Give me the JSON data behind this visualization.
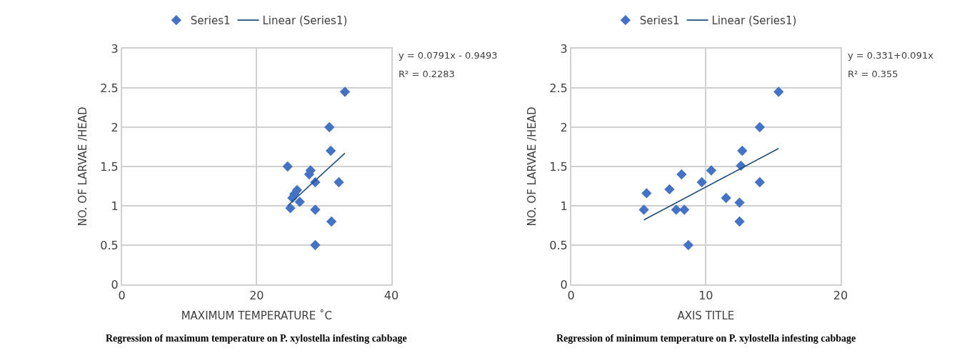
{
  "chart_data": [
    {
      "type": "scatter",
      "xlabel": "MAXIMUM TEMPERATURE ˚C",
      "ylabel": "NO. OF LARVAE /HEAD",
      "xlim": [
        0,
        40
      ],
      "xticks": [
        0,
        20,
        40
      ],
      "ylim": [
        0,
        3
      ],
      "yticks": [
        0,
        0.5,
        1,
        1.5,
        2,
        2.5,
        3
      ],
      "grid": true,
      "legend": "top",
      "series": [
        {
          "name": "Series1",
          "marker": "diamond",
          "color": "#4472c4",
          "x": [
            33.1,
            30.8,
            31.0,
            24.6,
            28.0,
            27.8,
            28.7,
            32.2,
            26.0,
            25.6,
            null,
            25.0,
            28.7,
            28.7,
            25.3,
            26.4,
            31.1
          ],
          "values": [
            2.45,
            2.0,
            1.7,
            1.5,
            1.45,
            1.4,
            1.3,
            1.3,
            1.2,
            1.15,
            null,
            0.97,
            0.95,
            0.5,
            1.1,
            1.05,
            0.8
          ]
        },
        {
          "name": "Linear (Series1)",
          "type": "line",
          "color": "#1f4e79",
          "x": [
            24.6,
            33.1
          ],
          "values": [
            1.0,
            1.67
          ]
        }
      ],
      "annotations": [
        "y = 0.0791x - 0.9493",
        "R² = 0.2283",
        "Regression of maximum temperature on P. xylostella infesting cabbage"
      ]
    },
    {
      "type": "scatter",
      "xlabel": "AXIS TITLE",
      "ylabel": "NO. OF LARVAE /HEAD",
      "xlim": [
        0,
        20
      ],
      "xticks": [
        0,
        10,
        20
      ],
      "ylim": [
        0,
        3
      ],
      "yticks": [
        0,
        0.5,
        1,
        1.5,
        2,
        2.5,
        3
      ],
      "grid": true,
      "legend": "top",
      "series": [
        {
          "name": "Series1",
          "marker": "diamond",
          "color": "#4472c4",
          "x": [
            15.4,
            14.0,
            12.7,
            12.6,
            14.0,
            10.4,
            9.7,
            8.2,
            7.3,
            5.6,
            5.4,
            7.8,
            8.4,
            8.7,
            11.5,
            12.5,
            12.5
          ],
          "values": [
            2.45,
            2.0,
            1.7,
            1.51,
            1.3,
            1.45,
            1.3,
            1.4,
            1.21,
            1.16,
            0.95,
            0.95,
            0.95,
            0.5,
            1.1,
            1.04,
            0.8
          ]
        },
        {
          "name": "Linear (Series1)",
          "type": "line",
          "color": "#1f4e79",
          "x": [
            5.4,
            15.4
          ],
          "values": [
            0.82,
            1.73
          ]
        }
      ],
      "annotations": [
        "y = 0.331+0.091x",
        "R² = 0.355",
        "Regression of minimum temperature on P. xylostella infesting cabbage"
      ]
    }
  ]
}
